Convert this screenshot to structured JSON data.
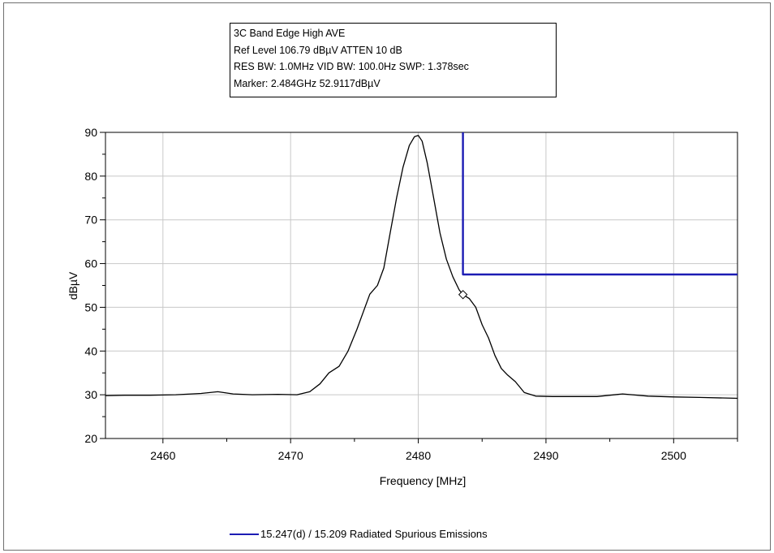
{
  "header": {
    "lines": [
      "3C Band Edge High AVE",
      "Ref Level 106.79 dBµV    ATTEN 10 dB",
      "RES BW: 1.0MHz  VID BW: 100.0Hz  SWP: 1.378sec",
      "Marker: 2.484GHz  52.9117dBµV"
    ]
  },
  "legend": {
    "label": "15.247(d) / 15.209 Radiated Spurious Emissions",
    "color": "#1c1cb4"
  },
  "chart_data": {
    "type": "line",
    "xlabel": "Frequency [MHz]",
    "ylabel": "dBµV",
    "xlim": [
      2455.5,
      2505
    ],
    "ylim": [
      20,
      90
    ],
    "x_ticks": [
      2460,
      2470,
      2480,
      2490,
      2500
    ],
    "y_ticks": [
      20,
      30,
      40,
      50,
      60,
      70,
      80,
      90
    ],
    "grid": true,
    "series": [
      {
        "color": "#000000",
        "x": [
          2455.5,
          2457,
          2459,
          2461,
          2463,
          2464.3,
          2465.5,
          2467,
          2469,
          2470.5,
          2471.5,
          2472.3,
          2473,
          2473.8,
          2474.5,
          2475.2,
          2475.7,
          2476.2,
          2476.8,
          2477.3,
          2477.8,
          2478.3,
          2478.8,
          2479.3,
          2479.7,
          2480,
          2480.3,
          2480.7,
          2481.2,
          2481.7,
          2482.2,
          2482.7,
          2483.2,
          2483.5,
          2484,
          2484.5,
          2485,
          2485.5,
          2486,
          2486.5,
          2487,
          2487.6,
          2488.3,
          2489.2,
          2490.5,
          2492,
          2494,
          2496,
          2498,
          2500,
          2502,
          2505
        ],
        "values": [
          29.8,
          29.9,
          29.9,
          30.0,
          30.3,
          30.7,
          30.2,
          30.0,
          30.1,
          30.0,
          30.7,
          32.5,
          35.0,
          36.5,
          40.0,
          45.0,
          49.0,
          53.0,
          55.0,
          59.0,
          67.0,
          75.0,
          82.0,
          87.0,
          89.0,
          89.3,
          88.0,
          83.0,
          75.0,
          67.0,
          61.0,
          57.0,
          54.0,
          52.9,
          52.0,
          50.0,
          46.0,
          43.0,
          39.0,
          36.0,
          34.5,
          33.0,
          30.5,
          29.7,
          29.6,
          29.6,
          29.6,
          30.2,
          29.7,
          29.5,
          29.4,
          29.2
        ]
      },
      {
        "color": "#1c1cb4",
        "x": [
          2483.5,
          2483.5,
          2505
        ],
        "values": [
          90,
          57.5,
          57.5
        ]
      }
    ],
    "marker": {
      "x": 2483.5,
      "y": 52.9
    }
  }
}
